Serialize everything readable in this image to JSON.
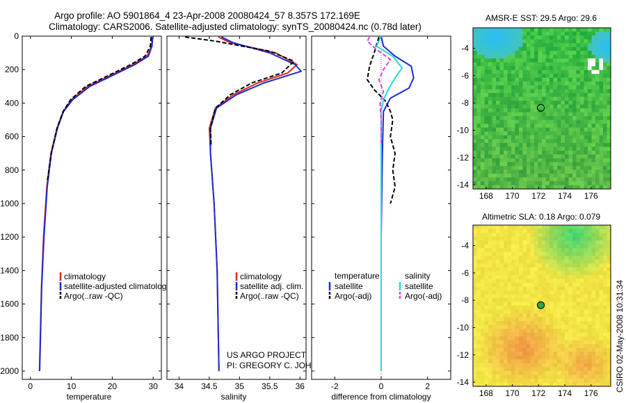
{
  "header": {
    "line1": "Argo profile: AO 5901864_4 23-Apr-2008 20080424_57 8.357S 172.169E",
    "line2": "Climatology: CARS2006. Satellite-adjusted climatology: synTS_20080424.nc (0.78d later)"
  },
  "credit": {
    "project": "US ARGO PROJECT",
    "pi": "PI: GREGORY C. JOHNSON",
    "stamp": "CSIRO 02-May-2008 10:31:34"
  },
  "colors": {
    "climatology": "#d62a1e",
    "satellite": "#1a2bd6",
    "argo": "#000000",
    "sal_satellite": "#27d8e0",
    "sal_argo": "#e040e0"
  },
  "chart_data": [
    {
      "type": "line",
      "id": "temperature",
      "xlabel": "temperature",
      "xlim": [
        -2,
        32
      ],
      "ylim": [
        2050,
        0
      ],
      "xticks": [
        0,
        10,
        20,
        30
      ],
      "yticks": [
        0,
        200,
        400,
        600,
        800,
        1000,
        1200,
        1400,
        1600,
        1800,
        2000
      ],
      "legend": {
        "position": "lower-right",
        "entries": [
          "climatology",
          "satellite-adjusted climatology",
          "Argo(..raw -QC)"
        ]
      },
      "series": [
        {
          "name": "climatology",
          "color_key": "climatology",
          "x": [
            29.8,
            29.6,
            28.5,
            25,
            20,
            14,
            10,
            8,
            6.5,
            5,
            4,
            3.2,
            2.7,
            2.4,
            2.2
          ],
          "y": [
            5,
            60,
            120,
            170,
            230,
            300,
            380,
            450,
            550,
            700,
            900,
            1200,
            1500,
            1800,
            2000
          ]
        },
        {
          "name": "satellite-adjusted climatology",
          "color_key": "satellite",
          "x": [
            29.9,
            29.7,
            28.8,
            25.5,
            20.5,
            14.5,
            10.3,
            8.1,
            6.6,
            5.1,
            4.1,
            3.3,
            2.75,
            2.45,
            2.25
          ],
          "y": [
            5,
            60,
            120,
            170,
            230,
            300,
            380,
            450,
            550,
            700,
            900,
            1200,
            1500,
            1800,
            2000
          ]
        },
        {
          "name": "Argo(..raw -QC)",
          "color_key": "argo",
          "dashed": true,
          "x": [
            29.5,
            29.3,
            28,
            24.5,
            19.5,
            13.5,
            9.8,
            8,
            6.5,
            5.1,
            4.1
          ],
          "y": [
            5,
            60,
            120,
            170,
            230,
            300,
            380,
            450,
            550,
            700,
            870
          ]
        }
      ]
    },
    {
      "type": "line",
      "id": "salinity",
      "xlabel": "salinity",
      "xlim": [
        33.8,
        36.1
      ],
      "ylim": [
        2050,
        0
      ],
      "xticks": [
        34,
        34.5,
        35,
        35.5,
        36
      ],
      "xtick_labels": [
        "34",
        "34.5",
        "35",
        "35.5",
        "36"
      ],
      "legend": {
        "position": "lower-right",
        "entries": [
          "climatology",
          "satellite adj. clim.",
          "Argo(..raw -QC)"
        ]
      },
      "series": [
        {
          "name": "climatology",
          "color_key": "climatology",
          "x": [
            34.65,
            34.85,
            35.6,
            35.95,
            35.8,
            35.3,
            34.9,
            34.6,
            34.5,
            34.52,
            34.58,
            34.63,
            34.65,
            34.66
          ],
          "y": [
            5,
            40,
            100,
            170,
            220,
            280,
            350,
            430,
            550,
            700,
            1000,
            1400,
            1800,
            2000
          ]
        },
        {
          "name": "satellite adj. clim.",
          "color_key": "satellite",
          "x": [
            34.7,
            34.9,
            35.5,
            35.92,
            36.02,
            35.4,
            34.95,
            34.62,
            34.52,
            34.52,
            34.58,
            34.63,
            34.65,
            34.66
          ],
          "y": [
            5,
            40,
            100,
            170,
            210,
            280,
            350,
            430,
            550,
            700,
            1000,
            1400,
            1800,
            2000
          ]
        },
        {
          "name": "Argo(..raw -QC)",
          "color_key": "argo",
          "dashed": true,
          "x": [
            34.1,
            34.6,
            35.5,
            35.9,
            35.7,
            35.2,
            34.85,
            34.6,
            34.52,
            34.53
          ],
          "y": [
            5,
            30,
            90,
            150,
            220,
            280,
            350,
            430,
            550,
            650
          ]
        }
      ]
    },
    {
      "type": "line",
      "id": "difference",
      "xlabel": "difference from climatology",
      "xlim": [
        -3,
        3
      ],
      "ylim": [
        2050,
        0
      ],
      "xticks": [
        -2,
        0,
        2
      ],
      "legend": {
        "position": "lower-right",
        "headers": [
          "temperature",
          "salinity"
        ],
        "entries": [
          "satellite",
          "Argo(-adj)",
          "satellite",
          "Argo(-adj)"
        ]
      },
      "series": [
        {
          "name": "temperature satellite",
          "color_key": "satellite",
          "x": [
            0,
            0.1,
            0.6,
            1.3,
            1.4,
            1.2,
            0.4,
            0.1,
            0.05,
            0,
            0
          ],
          "y": [
            0,
            60,
            120,
            180,
            250,
            310,
            370,
            450,
            700,
            1200,
            2000
          ]
        },
        {
          "name": "temperature Argo(-adj)",
          "color_key": "argo",
          "dashed": true,
          "x": [
            -0.1,
            -0.3,
            -0.5,
            -0.6,
            -0.3,
            0.2,
            0.4,
            0.5,
            0.4,
            0.6,
            0.5,
            0.6,
            0.4
          ],
          "y": [
            5,
            100,
            180,
            260,
            320,
            390,
            450,
            500,
            600,
            700,
            800,
            900,
            1000
          ]
        },
        {
          "name": "salinity satellite",
          "color_key": "sal_satellite",
          "x": [
            0,
            -0.2,
            0.5,
            0.9,
            0.6,
            0.3,
            0.1,
            0,
            0,
            0
          ],
          "y": [
            0,
            60,
            120,
            190,
            250,
            320,
            380,
            450,
            1000,
            2000
          ]
        },
        {
          "name": "salinity Argo(-adj)",
          "color_key": "sal_argo",
          "dashed": true,
          "x": [
            -0.5,
            -0.6,
            -0.2,
            0.4,
            0.1,
            -0.1,
            0.1,
            -0.05,
            0,
            0
          ],
          "y": [
            5,
            30,
            80,
            140,
            200,
            260,
            330,
            400,
            500,
            650
          ]
        }
      ]
    },
    {
      "type": "heatmap",
      "id": "sst-map",
      "title": "AMSR-E SST: 29.5 Argo: 29.6",
      "xlim": [
        167,
        177.5
      ],
      "ylim": [
        -14.3,
        -2.5
      ],
      "xticks": [
        168,
        170,
        172,
        174,
        176
      ],
      "yticks": [
        -4,
        -6,
        -8,
        -10,
        -12,
        -14
      ],
      "marker": {
        "lon": 172.169,
        "lat": -8.357
      },
      "palette": "green"
    },
    {
      "type": "heatmap",
      "id": "sla-map",
      "title": "Altimetric SLA: 0.18 Argo: 0.079",
      "xlim": [
        167,
        177.5
      ],
      "ylim": [
        -14.3,
        -2.5
      ],
      "xticks": [
        168,
        170,
        172,
        174,
        176
      ],
      "yticks": [
        -4,
        -6,
        -8,
        -10,
        -12,
        -14
      ],
      "marker": {
        "lon": 172.169,
        "lat": -8.357
      },
      "palette": "yellow"
    }
  ]
}
